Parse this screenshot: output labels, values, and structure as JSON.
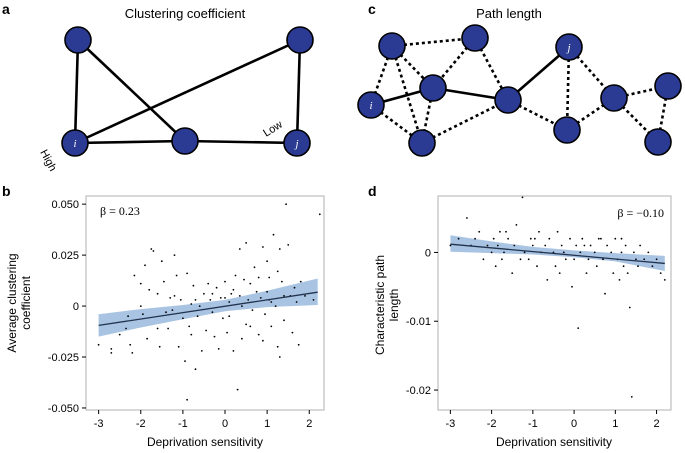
{
  "panels": {
    "a": {
      "letter": "a",
      "title": "Clustering coefficient",
      "node_labels": {
        "i": "i",
        "j": "j"
      },
      "annotations": {
        "high": "High",
        "low": "Low"
      }
    },
    "c": {
      "letter": "c",
      "title": "Path length",
      "node_labels": {
        "i": "i",
        "j": "j"
      }
    }
  },
  "colors": {
    "node_fill": "#2b3a93",
    "band_fill": "#a9c4e3",
    "fit_line": "#22334d"
  },
  "chart_data": [
    {
      "id": "b",
      "letter": "b",
      "type": "scatter",
      "xlabel": "Deprivation sensitivity",
      "ylabel_lines": [
        "Average clustering",
        "coefficient"
      ],
      "annotation": "β = 0.23",
      "xlim": [
        -3.3,
        2.35
      ],
      "ylim": [
        -0.051,
        0.054
      ],
      "xticks": [
        -3,
        -2,
        -1,
        0,
        1,
        2
      ],
      "xtick_labels": [
        "-3",
        "-2",
        "-1",
        "0",
        "1",
        "2"
      ],
      "yticks": [
        -0.05,
        -0.025,
        0,
        0.025,
        0.05
      ],
      "ytick_labels": [
        "-0.050",
        "-0.025",
        "0",
        "0.025",
        "0.050"
      ],
      "fit": {
        "x": [
          -3,
          2.2
        ],
        "y": [
          -0.0095,
          0.0068
        ]
      },
      "band": {
        "x": [
          -3,
          -2,
          -1,
          0,
          1,
          2.2
        ],
        "lower": [
          -0.015,
          -0.0105,
          -0.0065,
          -0.0025,
          -0.0005,
          0.0005
        ],
        "upper": [
          -0.004,
          -0.0015,
          0.0005,
          0.003,
          0.0075,
          0.0135
        ]
      },
      "points": [
        [
          -3.0,
          -0.019
        ],
        [
          -2.7,
          -0.021
        ],
        [
          -2.7,
          -0.023
        ],
        [
          -2.5,
          -0.014
        ],
        [
          -2.35,
          -0.011
        ],
        [
          -2.3,
          -0.005
        ],
        [
          -2.25,
          -0.019
        ],
        [
          -2.2,
          -0.023
        ],
        [
          -2.15,
          0.015
        ],
        [
          -2.0,
          0.011
        ],
        [
          -1.95,
          -0.004
        ],
        [
          -1.9,
          0.02
        ],
        [
          -1.85,
          -0.016
        ],
        [
          -1.8,
          0.008
        ],
        [
          -1.75,
          0.028
        ],
        [
          -1.7,
          0.027
        ],
        [
          -1.6,
          0.006
        ],
        [
          -1.6,
          -0.011
        ],
        [
          -1.55,
          -0.02
        ],
        [
          -1.5,
          0.022
        ],
        [
          -1.45,
          0.012
        ],
        [
          -1.4,
          -0.003
        ],
        [
          -1.35,
          -0.011
        ],
        [
          -1.3,
          0.004
        ],
        [
          -1.25,
          -0.002
        ],
        [
          -1.2,
          0.005
        ],
        [
          -1.15,
          0.015
        ],
        [
          -1.1,
          -0.02
        ],
        [
          -1.05,
          0.003
        ],
        [
          -1.0,
          -0.006
        ],
        [
          -0.95,
          -0.027
        ],
        [
          -0.9,
          -0.046
        ],
        [
          -0.9,
          0.016
        ],
        [
          -0.85,
          -0.01
        ],
        [
          -0.8,
          -0.014
        ],
        [
          -0.75,
          0.01
        ],
        [
          -0.7,
          0.003
        ],
        [
          -0.7,
          -0.031
        ],
        [
          -0.65,
          -0.005
        ],
        [
          -0.6,
          0.0
        ],
        [
          -0.55,
          -0.022
        ],
        [
          -0.5,
          0.006
        ],
        [
          -0.45,
          -0.012
        ],
        [
          -0.4,
          0.011
        ],
        [
          -0.35,
          0.003
        ],
        [
          -0.3,
          -0.003
        ],
        [
          -0.25,
          -0.015
        ],
        [
          -0.2,
          0.009
        ],
        [
          -0.15,
          -0.021
        ],
        [
          -0.1,
          0.004
        ],
        [
          -0.05,
          -0.006
        ],
        [
          0.0,
          0.012
        ],
        [
          0.05,
          -0.013
        ],
        [
          0.1,
          0.002
        ],
        [
          0.15,
          0.006
        ],
        [
          0.2,
          0.008
        ],
        [
          0.2,
          -0.022
        ],
        [
          0.25,
          0.015
        ],
        [
          0.3,
          -0.041
        ],
        [
          0.35,
          0.005
        ],
        [
          0.35,
          0.028
        ],
        [
          0.4,
          0.0
        ],
        [
          0.45,
          0.013
        ],
        [
          0.5,
          0.031
        ],
        [
          0.5,
          -0.009
        ],
        [
          0.55,
          0.003
        ],
        [
          0.6,
          0.011
        ],
        [
          0.65,
          -0.002
        ],
        [
          0.7,
          0.019
        ],
        [
          0.75,
          0.007
        ],
        [
          0.8,
          -0.014
        ],
        [
          0.85,
          0.004
        ],
        [
          0.9,
          -0.017
        ],
        [
          0.9,
          0.029
        ],
        [
          0.95,
          -0.004
        ],
        [
          1.0,
          0.022
        ],
        [
          1.0,
          0.007
        ],
        [
          1.05,
          0.014
        ],
        [
          1.1,
          -0.01
        ],
        [
          1.1,
          0.002
        ],
        [
          1.15,
          0.035
        ],
        [
          1.2,
          0.0
        ],
        [
          1.25,
          -0.02
        ],
        [
          1.25,
          0.017
        ],
        [
          1.3,
          0.028
        ],
        [
          1.3,
          -0.025
        ],
        [
          1.35,
          0.012
        ],
        [
          1.4,
          0.005
        ],
        [
          1.4,
          -0.007
        ],
        [
          1.45,
          0.05
        ],
        [
          1.5,
          0.03
        ],
        [
          1.55,
          0.005
        ],
        [
          1.6,
          -0.013
        ],
        [
          1.65,
          0.009
        ],
        [
          1.7,
          0.002
        ],
        [
          1.75,
          -0.019
        ],
        [
          1.8,
          0.012
        ],
        [
          1.9,
          0.005
        ],
        [
          2.1,
          0.003
        ],
        [
          2.25,
          0.045
        ],
        [
          0.0,
          0.004
        ],
        [
          0.1,
          -0.005
        ],
        [
          0.6,
          -0.01
        ],
        [
          -0.3,
          0.006
        ],
        [
          0.8,
          0.014
        ],
        [
          1.05,
          0.003
        ],
        [
          -1.2,
          0.025
        ],
        [
          -2.0,
          0.0
        ],
        [
          -0.8,
          0.001
        ],
        [
          0.4,
          -0.016
        ]
      ]
    },
    {
      "id": "d",
      "letter": "d",
      "type": "scatter",
      "xlabel": "Deprivation sensitivity",
      "ylabel_lines": [
        "Characteristic path",
        "length"
      ],
      "annotation": "β = −0.10",
      "xlim": [
        -3.3,
        2.35
      ],
      "ylim": [
        -0.0229,
        0.0082
      ],
      "xticks": [
        -3,
        -2,
        -1,
        0,
        1,
        2
      ],
      "xtick_labels": [
        "-3",
        "-2",
        "-1",
        "0",
        "1",
        "2"
      ],
      "yticks": [
        -0.02,
        -0.01,
        0
      ],
      "ytick_labels": [
        "-0.02",
        "-0.01",
        "0"
      ],
      "fit": {
        "x": [
          -3,
          2.2
        ],
        "y": [
          0.0012,
          -0.0016
        ]
      },
      "band": {
        "x": [
          -3,
          -2,
          -1,
          0,
          1,
          2.2
        ],
        "lower": [
          0.0001,
          -0.0001,
          -0.0003,
          -0.0007,
          -0.0013,
          -0.0027
        ],
        "upper": [
          0.0025,
          0.0016,
          0.0008,
          0.0003,
          -0.0001,
          -0.0005
        ]
      },
      "points": [
        [
          -3.0,
          0.001
        ],
        [
          -2.6,
          0.005
        ],
        [
          -2.5,
          0.001
        ],
        [
          -2.4,
          0.002
        ],
        [
          -2.3,
          0.003
        ],
        [
          -2.2,
          -0.001
        ],
        [
          -2.1,
          0.001
        ],
        [
          -2.0,
          0.0
        ],
        [
          -1.95,
          0.002
        ],
        [
          -1.9,
          -0.002
        ],
        [
          -1.85,
          0.001
        ],
        [
          -1.8,
          0.003
        ],
        [
          -1.75,
          -0.001
        ],
        [
          -1.7,
          0.0
        ],
        [
          -1.6,
          0.002
        ],
        [
          -1.5,
          -0.003
        ],
        [
          -1.45,
          0.001
        ],
        [
          -1.4,
          0.004
        ],
        [
          -1.3,
          -0.001
        ],
        [
          -1.25,
          0.008
        ],
        [
          -1.2,
          0.0
        ],
        [
          -1.1,
          -0.001
        ],
        [
          -1.05,
          0.002
        ],
        [
          -1.0,
          0.001
        ],
        [
          -0.9,
          -0.002
        ],
        [
          -0.85,
          0.003
        ],
        [
          -0.8,
          0.0
        ],
        [
          -0.7,
          0.001
        ],
        [
          -0.65,
          -0.004
        ],
        [
          -0.6,
          0.002
        ],
        [
          -0.5,
          0.0
        ],
        [
          -0.45,
          -0.002
        ],
        [
          -0.4,
          0.003
        ],
        [
          -0.3,
          0.001
        ],
        [
          -0.25,
          0.0
        ],
        [
          -0.2,
          -0.001
        ],
        [
          -0.1,
          0.002
        ],
        [
          -0.05,
          -0.005
        ],
        [
          0.0,
          -0.001
        ],
        [
          0.05,
          0.001
        ],
        [
          0.1,
          -0.011
        ],
        [
          0.15,
          0.0
        ],
        [
          0.2,
          0.002
        ],
        [
          0.3,
          -0.003
        ],
        [
          0.35,
          -0.001
        ],
        [
          0.4,
          0.001
        ],
        [
          0.5,
          0.0
        ],
        [
          0.55,
          -0.002
        ],
        [
          0.6,
          0.002
        ],
        [
          0.7,
          -0.001
        ],
        [
          0.75,
          -0.006
        ],
        [
          0.8,
          0.001
        ],
        [
          0.9,
          0.0
        ],
        [
          0.95,
          -0.003
        ],
        [
          1.0,
          0.002
        ],
        [
          1.05,
          -0.001
        ],
        [
          1.1,
          -0.004
        ],
        [
          1.15,
          0.0
        ],
        [
          1.2,
          -0.002
        ],
        [
          1.25,
          0.001
        ],
        [
          1.3,
          -0.003
        ],
        [
          1.35,
          -0.008
        ],
        [
          1.4,
          -0.021
        ],
        [
          1.45,
          0.0
        ],
        [
          1.5,
          -0.001
        ],
        [
          1.55,
          -0.002
        ],
        [
          1.6,
          0.001
        ],
        [
          1.7,
          -0.001
        ],
        [
          1.8,
          0.0
        ],
        [
          1.9,
          -0.002
        ],
        [
          2.0,
          -0.001
        ],
        [
          2.1,
          -0.003
        ],
        [
          2.2,
          -0.004
        ],
        [
          -2.8,
          0.002
        ],
        [
          -1.65,
          0.003
        ],
        [
          -0.95,
          0.002
        ],
        [
          0.25,
          0.001
        ],
        [
          0.65,
          0.002
        ],
        [
          1.15,
          0.002
        ],
        [
          -0.35,
          -0.003
        ]
      ]
    }
  ]
}
